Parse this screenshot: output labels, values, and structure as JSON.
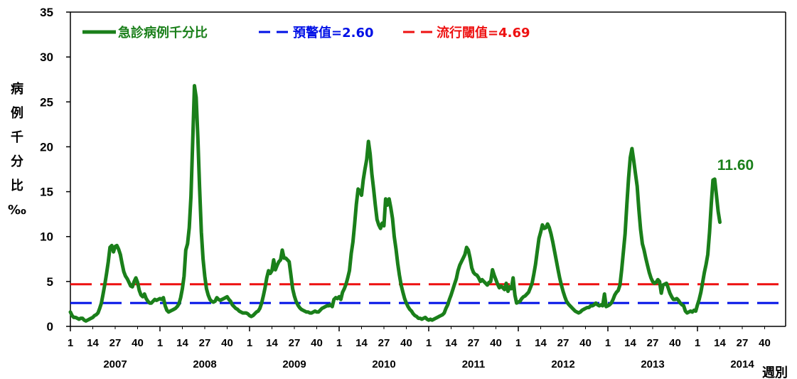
{
  "chart_data": {
    "type": "line",
    "ylabel_chars": [
      "病",
      "例",
      "千",
      "分",
      "比",
      "‰"
    ],
    "xlabel": "週別",
    "ylim": [
      0,
      35
    ],
    "yticks": [
      0,
      5,
      10,
      15,
      20,
      25,
      30,
      35
    ],
    "week_ticks": [
      "1",
      "14",
      "27",
      "40"
    ],
    "years": [
      "2007",
      "2008",
      "2009",
      "2010",
      "2011",
      "2012",
      "2013",
      "2014"
    ],
    "legend_position": "top-left",
    "grid": false,
    "series": [
      {
        "name": "急診病例千分比",
        "color": "#1a7f1a",
        "start_year_index": 0,
        "values": [
          1.6,
          1.2,
          1.0,
          1.0,
          0.9,
          0.8,
          0.9,
          0.9,
          0.7,
          0.6,
          0.7,
          0.8,
          0.9,
          1.0,
          1.2,
          1.3,
          1.5,
          2.0,
          2.6,
          3.6,
          4.7,
          5.9,
          7.2,
          8.8,
          9.0,
          8.3,
          8.9,
          9.0,
          8.6,
          8.0,
          7.0,
          6.1,
          5.6,
          5.3,
          4.9,
          4.5,
          4.4,
          5.0,
          5.4,
          4.9,
          4.0,
          3.5,
          3.3,
          3.6,
          3.1,
          2.8,
          2.6,
          2.6,
          2.8,
          3.0,
          2.9,
          3.0,
          3.1,
          3.0,
          3.2,
          2.3,
          1.8,
          1.6,
          1.7,
          1.8,
          1.9,
          2.0,
          2.2,
          2.5,
          3.2,
          4.2,
          5.6,
          8.5,
          9.2,
          11.0,
          14.5,
          20.5,
          26.8,
          25.5,
          21.0,
          15.5,
          10.5,
          7.5,
          5.6,
          4.2,
          3.5,
          3.0,
          2.8,
          2.7,
          2.8,
          3.2,
          3.0,
          2.9,
          3.0,
          3.1,
          3.2,
          3.3,
          3.0,
          2.8,
          2.4,
          2.2,
          2.0,
          1.9,
          1.7,
          1.6,
          1.5,
          1.5,
          1.5,
          1.4,
          1.2,
          1.1,
          1.2,
          1.4,
          1.6,
          1.7,
          2.0,
          2.6,
          3.4,
          4.3,
          5.4,
          6.2,
          5.9,
          6.2,
          7.4,
          6.3,
          6.8,
          7.2,
          7.4,
          8.5,
          7.6,
          7.6,
          7.4,
          7.2,
          5.7,
          4.2,
          3.4,
          2.8,
          2.4,
          2.1,
          1.9,
          1.8,
          1.7,
          1.6,
          1.6,
          1.5,
          1.5,
          1.6,
          1.7,
          1.6,
          1.6,
          1.8,
          2.0,
          2.1,
          2.2,
          2.3,
          2.3,
          2.4,
          2.2,
          3.0,
          3.2,
          3.1,
          3.3,
          3.0,
          3.8,
          4.2,
          4.7,
          5.4,
          6.2,
          8.1,
          9.4,
          11.4,
          13.6,
          15.3,
          15.1,
          14.6,
          16.3,
          17.5,
          18.6,
          20.6,
          19.2,
          17.0,
          15.3,
          13.5,
          11.9,
          11.3,
          10.9,
          11.5,
          11.2,
          14.2,
          13.5,
          14.2,
          13.2,
          12.0,
          10.0,
          8.6,
          7.0,
          5.7,
          4.6,
          3.8,
          3.1,
          2.6,
          2.2,
          1.9,
          1.7,
          1.4,
          1.2,
          1.1,
          0.9,
          0.9,
          0.8,
          0.9,
          1.0,
          0.8,
          0.7,
          0.8,
          0.7,
          0.8,
          0.9,
          1.0,
          1.1,
          1.2,
          1.3,
          1.5,
          2.0,
          2.4,
          3.0,
          3.5,
          4.1,
          4.7,
          5.3,
          6.2,
          6.8,
          7.2,
          7.6,
          8.0,
          8.8,
          8.5,
          7.6,
          6.5,
          6.0,
          5.8,
          5.7,
          5.4,
          5.0,
          5.2,
          5.0,
          4.8,
          4.6,
          4.9,
          5.0,
          6.3,
          5.7,
          5.2,
          4.7,
          4.3,
          4.5,
          4.3,
          4.1,
          4.8,
          3.9,
          4.4,
          4.2,
          5.4,
          3.5,
          2.6,
          2.7,
          2.8,
          3.1,
          3.3,
          3.4,
          3.6,
          3.8,
          4.3,
          4.8,
          5.8,
          6.9,
          8.4,
          9.8,
          10.5,
          11.3,
          10.9,
          11.0,
          11.4,
          11.0,
          10.3,
          9.4,
          8.4,
          7.4,
          6.4,
          5.4,
          4.6,
          3.9,
          3.3,
          2.8,
          2.5,
          2.3,
          2.1,
          1.9,
          1.7,
          1.6,
          1.5,
          1.6,
          1.8,
          1.9,
          2.0,
          2.1,
          2.1,
          2.3,
          2.3,
          2.4,
          2.6,
          2.4,
          2.3,
          2.4,
          2.3,
          3.6,
          2.2,
          2.3,
          2.4,
          2.6,
          3.0,
          3.5,
          3.8,
          4.0,
          4.6,
          6.3,
          8.3,
          10.3,
          13.6,
          16.5,
          18.8,
          19.8,
          18.5,
          17.0,
          15.6,
          13.0,
          10.8,
          9.2,
          8.5,
          7.6,
          6.8,
          6.0,
          5.4,
          5.0,
          4.8,
          4.9,
          5.2,
          5.0,
          3.7,
          4.6,
          4.7,
          4.8,
          4.3,
          3.7,
          3.3,
          3.0,
          3.0,
          3.1,
          2.9,
          2.6,
          2.4,
          2.3,
          1.7,
          1.5,
          1.6,
          1.7,
          1.6,
          1.8,
          1.7,
          2.4,
          3.0,
          3.8,
          4.9,
          6.0,
          6.9,
          8.0,
          10.5,
          13.6,
          16.3,
          16.4,
          14.6,
          12.8,
          11.6
        ]
      },
      {
        "name": "預警值=2.60",
        "color": "#0010e6",
        "value": 2.6,
        "dash": true
      },
      {
        "name": "流行閾值=4.69",
        "color": "#ee1111",
        "value": 4.69,
        "dash": true
      }
    ],
    "annotations": [
      {
        "text": "11.60",
        "color": "#1a7f1a",
        "series": 0,
        "index": "last"
      }
    ]
  }
}
